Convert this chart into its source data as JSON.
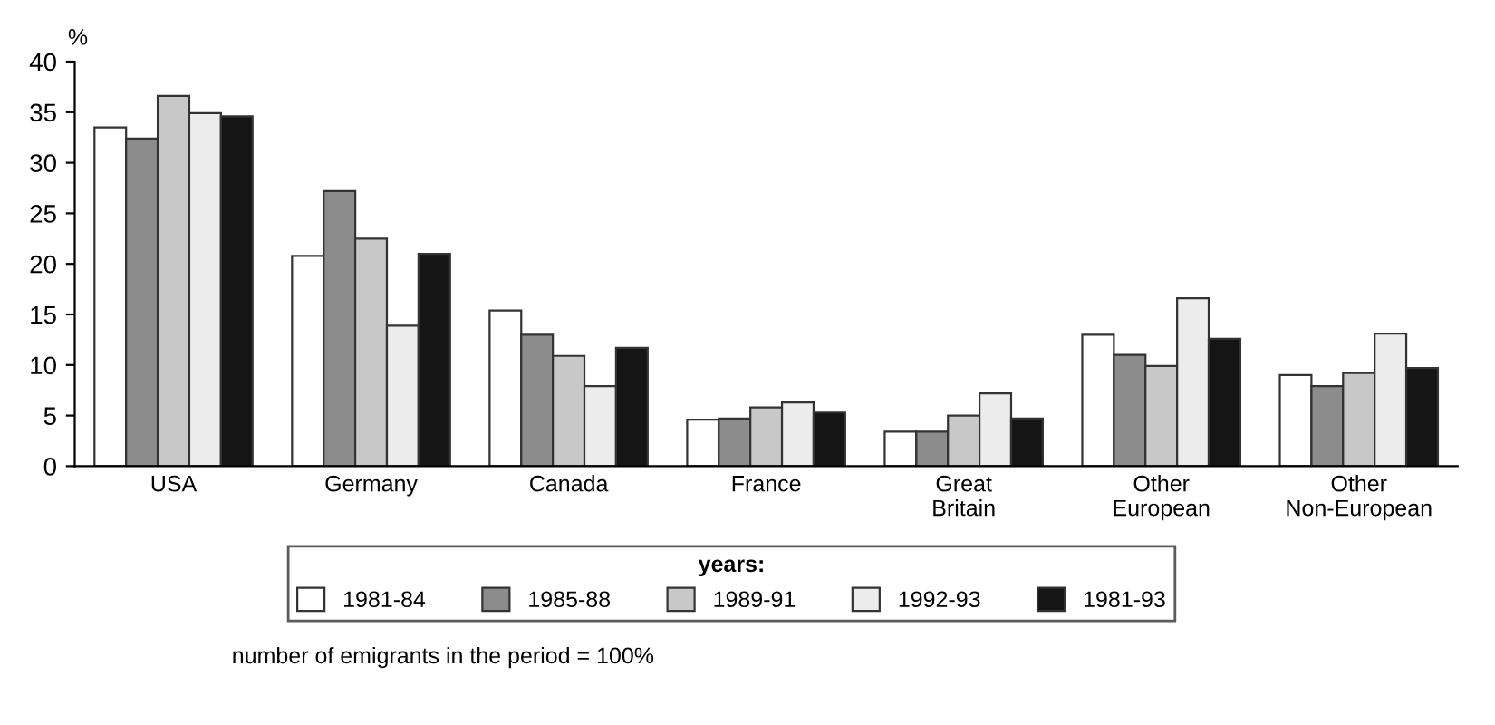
{
  "chart_data": {
    "type": "bar",
    "ylabel": "%",
    "legend_title": "years:",
    "categories": [
      "USA",
      "Germany",
      "Canada",
      "France",
      "Great\nBritain",
      "Other\nEuropean",
      "Other\nNon-European"
    ],
    "series": [
      {
        "name": "1981-84",
        "color": "#ffffff",
        "values": [
          33.5,
          20.8,
          15.4,
          4.6,
          3.4,
          13.0,
          9.0
        ]
      },
      {
        "name": "1985-88",
        "color": "#8c8c8c",
        "values": [
          32.4,
          27.2,
          13.0,
          4.7,
          3.4,
          11.0,
          7.9
        ]
      },
      {
        "name": "1989-91",
        "color": "#c8c8c8",
        "values": [
          36.6,
          22.5,
          10.9,
          5.8,
          5.0,
          9.9,
          9.2
        ]
      },
      {
        "name": "1992-93",
        "color": "#ececec",
        "values": [
          34.9,
          13.9,
          7.9,
          6.3,
          7.2,
          16.6,
          13.1
        ]
      },
      {
        "name": "1981-93",
        "color": "#151515",
        "values": [
          34.6,
          21.0,
          11.7,
          5.3,
          4.7,
          12.6,
          9.7
        ]
      }
    ],
    "ylim": [
      0,
      40
    ],
    "yticks": [
      0,
      5,
      10,
      15,
      20,
      25,
      30,
      35,
      40
    ],
    "grid": false,
    "legend": "bottom",
    "annotations": [
      "number of emigrants in the period = 100%"
    ]
  }
}
